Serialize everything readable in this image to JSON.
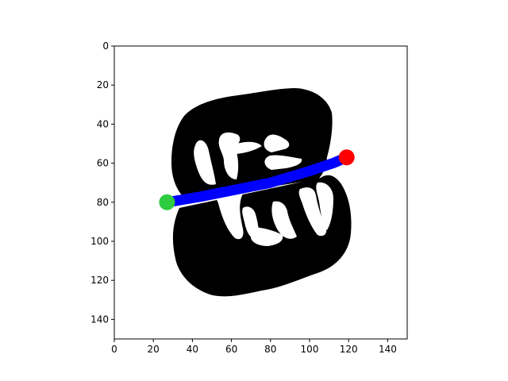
{
  "chart_data": {
    "type": "image",
    "title": "",
    "xlabel": "",
    "ylabel": "",
    "xlim": [
      0,
      150
    ],
    "ylim": [
      150,
      0
    ],
    "y_inverted": true,
    "xticks": [
      0,
      20,
      40,
      60,
      80,
      100,
      120,
      140
    ],
    "yticks": [
      0,
      20,
      40,
      60,
      80,
      100,
      120,
      140
    ],
    "grid": false,
    "image_colors": {
      "foreground": "#000000",
      "background": "#ffffff"
    },
    "path": {
      "color": "#0000ff",
      "points": [
        [
          27,
          80
        ],
        [
          45,
          77
        ],
        [
          60,
          74
        ],
        [
          80,
          70
        ],
        [
          100,
          64
        ],
        [
          112,
          60
        ],
        [
          119,
          57
        ]
      ]
    },
    "markers": [
      {
        "label": "start",
        "x": 27,
        "y": 80,
        "color": "#2ecc40"
      },
      {
        "label": "end",
        "x": 119,
        "y": 57,
        "color": "#ff0000"
      }
    ]
  }
}
